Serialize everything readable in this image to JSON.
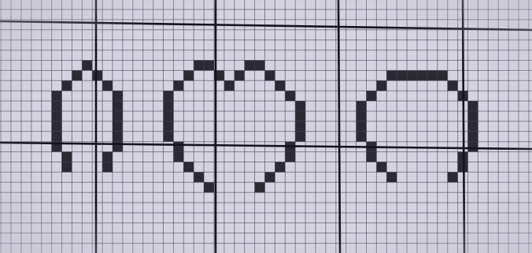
{
  "paper": {
    "background": "#d4d3df",
    "edge_shade": "#bdbcc9",
    "minor_line_color": "#3b3a4a",
    "major_line_color": "#15141c",
    "fill_color": "#1c1b24"
  },
  "grid": {
    "minor_columns": 51,
    "minor_rows": 24,
    "major_every_columns": 12,
    "major_every_rows": 12
  },
  "shapes": [
    {
      "name": "left-arch-shape",
      "cells": [
        [
          7,
          5
        ],
        [
          6,
          6
        ],
        [
          8,
          6
        ],
        [
          5,
          7
        ],
        [
          9,
          7
        ],
        [
          4,
          8
        ],
        [
          4,
          9
        ],
        [
          4,
          10
        ],
        [
          4,
          11
        ],
        [
          4,
          12
        ],
        [
          4,
          13
        ],
        [
          5,
          14
        ],
        [
          5,
          15
        ],
        [
          10,
          8
        ],
        [
          10,
          9
        ],
        [
          10,
          10
        ],
        [
          10,
          11
        ],
        [
          10,
          12
        ],
        [
          10,
          13
        ],
        [
          9,
          14
        ],
        [
          9,
          15
        ]
      ]
    },
    {
      "name": "middle-bump-shape",
      "cells": [
        [
          18,
          5
        ],
        [
          19,
          5
        ],
        [
          23,
          5
        ],
        [
          24,
          5
        ],
        [
          17,
          6
        ],
        [
          20,
          6
        ],
        [
          22,
          6
        ],
        [
          25,
          6
        ],
        [
          16,
          7
        ],
        [
          21,
          7
        ],
        [
          26,
          7
        ],
        [
          15,
          8
        ],
        [
          27,
          8
        ],
        [
          15,
          9
        ],
        [
          28,
          9
        ],
        [
          15,
          10
        ],
        [
          28,
          10
        ],
        [
          15,
          11
        ],
        [
          28,
          11
        ],
        [
          15,
          12
        ],
        [
          28,
          12
        ],
        [
          16,
          13
        ],
        [
          27,
          13
        ],
        [
          16,
          14
        ],
        [
          27,
          14
        ],
        [
          17,
          15
        ],
        [
          26,
          15
        ],
        [
          18,
          16
        ],
        [
          25,
          16
        ],
        [
          19,
          17
        ],
        [
          24,
          17
        ]
      ]
    },
    {
      "name": "right-cap-shape",
      "cells": [
        [
          37,
          6
        ],
        [
          38,
          6
        ],
        [
          39,
          6
        ],
        [
          40,
          6
        ],
        [
          41,
          6
        ],
        [
          42,
          6
        ],
        [
          36,
          7
        ],
        [
          43,
          7
        ],
        [
          35,
          8
        ],
        [
          44,
          8
        ],
        [
          34,
          9
        ],
        [
          45,
          9
        ],
        [
          34,
          10
        ],
        [
          45,
          10
        ],
        [
          34,
          11
        ],
        [
          45,
          11
        ],
        [
          34,
          12
        ],
        [
          45,
          12
        ],
        [
          35,
          13
        ],
        [
          45,
          13
        ],
        [
          35,
          14
        ],
        [
          44,
          14
        ],
        [
          36,
          15
        ],
        [
          44,
          15
        ],
        [
          37,
          16
        ],
        [
          43,
          16
        ]
      ]
    }
  ]
}
